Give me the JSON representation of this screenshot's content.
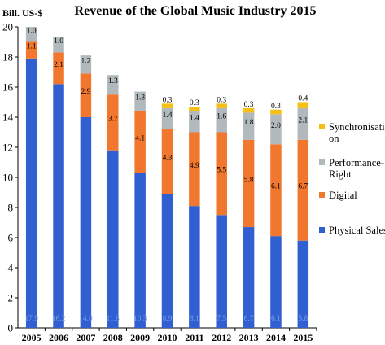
{
  "chart_data": {
    "type": "bar",
    "stacked": true,
    "title": "Revenue of the Global Music Industry 2015",
    "ylabel": "Bill. US-$",
    "xlabel": "",
    "ylim": [
      0,
      20
    ],
    "yticks": [
      0,
      2,
      4,
      6,
      8,
      10,
      12,
      14,
      16,
      18,
      20
    ],
    "grid": false,
    "legend_position": "right",
    "categories": [
      "2005",
      "2006",
      "2007",
      "2008",
      "2009",
      "2010",
      "2011",
      "2012",
      "2013",
      "2014",
      "2015"
    ],
    "series": [
      {
        "name": "Physical Sales",
        "color": "#2f5fd0",
        "values": [
          17.9,
          16.2,
          14.0,
          11.8,
          10.3,
          8.9,
          8.1,
          7.5,
          6.7,
          6.1,
          5.8
        ],
        "labels": [
          "17.9",
          "16.2",
          "14.0",
          "11.8",
          "10.3",
          "8.9",
          "8.1",
          "7.5",
          "6.7",
          "6.1",
          "5.8"
        ],
        "label_color": "#7f9be0"
      },
      {
        "name": "Digital",
        "color": "#f2772e",
        "values": [
          1.1,
          2.1,
          2.9,
          3.7,
          4.1,
          4.3,
          4.9,
          5.5,
          5.8,
          6.1,
          6.7
        ],
        "labels": [
          "1.1",
          "2.1",
          "2.9",
          "3.7",
          "4.1",
          "4.3",
          "4.9",
          "5.5",
          "5.8",
          "6.1",
          "6.7"
        ],
        "label_color": "#000000"
      },
      {
        "name": "Performance-Right",
        "color": "#b2b9bd",
        "values": [
          1.0,
          1.0,
          1.2,
          1.3,
          1.3,
          1.4,
          1.4,
          1.6,
          1.8,
          2.0,
          2.1
        ],
        "labels": [
          "1.0",
          "1.0",
          "1.2",
          "1.3",
          "1.3",
          "1.4",
          "1.4",
          "1.6",
          "1.8",
          "2.0",
          "2.1"
        ],
        "label_color": "#000000"
      },
      {
        "name": "Synchronisation",
        "color": "#f5bf16",
        "values": [
          0,
          0,
          0,
          0,
          0,
          0.3,
          0.3,
          0.3,
          0.3,
          0.3,
          0.4
        ],
        "labels": [
          "",
          "",
          "",
          "",
          "",
          "0.3",
          "0.3",
          "0.3",
          "0.3",
          "0.3",
          "0.4"
        ],
        "label_color": "#000000"
      }
    ],
    "legend": [
      {
        "series": 3,
        "lines": [
          "Synchronisati",
          "on"
        ]
      },
      {
        "series": 2,
        "lines": [
          "Performance-",
          "Right"
        ]
      },
      {
        "series": 1,
        "lines": [
          "Digital"
        ]
      },
      {
        "series": 0,
        "lines": [
          "Physical Sales"
        ]
      }
    ]
  }
}
